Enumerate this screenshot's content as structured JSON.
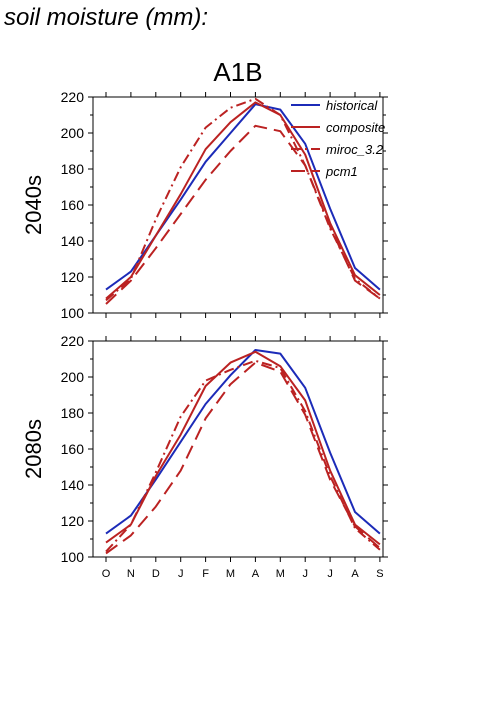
{
  "page": {
    "title": "soil moisture (mm):"
  },
  "chart_data": {
    "type": "line",
    "scenario": "A1B",
    "categories": [
      "O",
      "N",
      "D",
      "J",
      "F",
      "M",
      "A",
      "M",
      "J",
      "J",
      "A",
      "S"
    ],
    "ylim": [
      100,
      220
    ],
    "yticks": [
      100,
      120,
      140,
      160,
      180,
      200,
      220
    ],
    "legend": {
      "placement": "top-right"
    },
    "grid": false,
    "styles": {
      "historical": {
        "color": "#1c2bb8",
        "dash": ""
      },
      "composite": {
        "color": "#bb2222",
        "dash": ""
      },
      "miroc_3.2": {
        "color": "#bb2222",
        "dash": "10 4 2 4"
      },
      "pcm1": {
        "color": "#bb2222",
        "dash": "14 7"
      }
    },
    "panels": [
      {
        "row_label": "2040s",
        "series": [
          {
            "name": "historical",
            "values": [
              113,
              123,
              143,
              163,
              184,
              200,
              216,
              213,
              194,
              158,
              125,
              113
            ]
          },
          {
            "name": "composite",
            "values": [
              108,
              120,
              143,
              166,
              191,
              206,
              217,
              210,
              188,
              150,
              121,
              110
            ]
          },
          {
            "name": "miroc_3.2",
            "values": [
              107,
              119,
              152,
              181,
              203,
              214,
              219,
              210,
              182,
              147,
              119,
              108
            ]
          },
          {
            "name": "pcm1",
            "values": [
              105,
              118,
              136,
              155,
              174,
              190,
              204,
              201,
              182,
              148,
              118,
              108
            ]
          }
        ]
      },
      {
        "row_label": "2080s",
        "series": [
          {
            "name": "historical",
            "values": [
              113,
              123,
              143,
              164,
              185,
              201,
              215,
              213,
              194,
              158,
              125,
              113
            ]
          },
          {
            "name": "composite",
            "values": [
              108,
              118,
              145,
              168,
              195,
              208,
              214,
              206,
              187,
              148,
              118,
              107
            ]
          },
          {
            "name": "miroc_3.2",
            "values": [
              103,
              118,
              147,
              178,
              198,
              204,
              209,
              205,
              181,
              145,
              116,
              104
            ]
          },
          {
            "name": "pcm1",
            "values": [
              102,
              112,
              128,
              148,
              177,
              196,
              208,
              203,
              179,
              143,
              117,
              105
            ]
          }
        ]
      }
    ]
  }
}
